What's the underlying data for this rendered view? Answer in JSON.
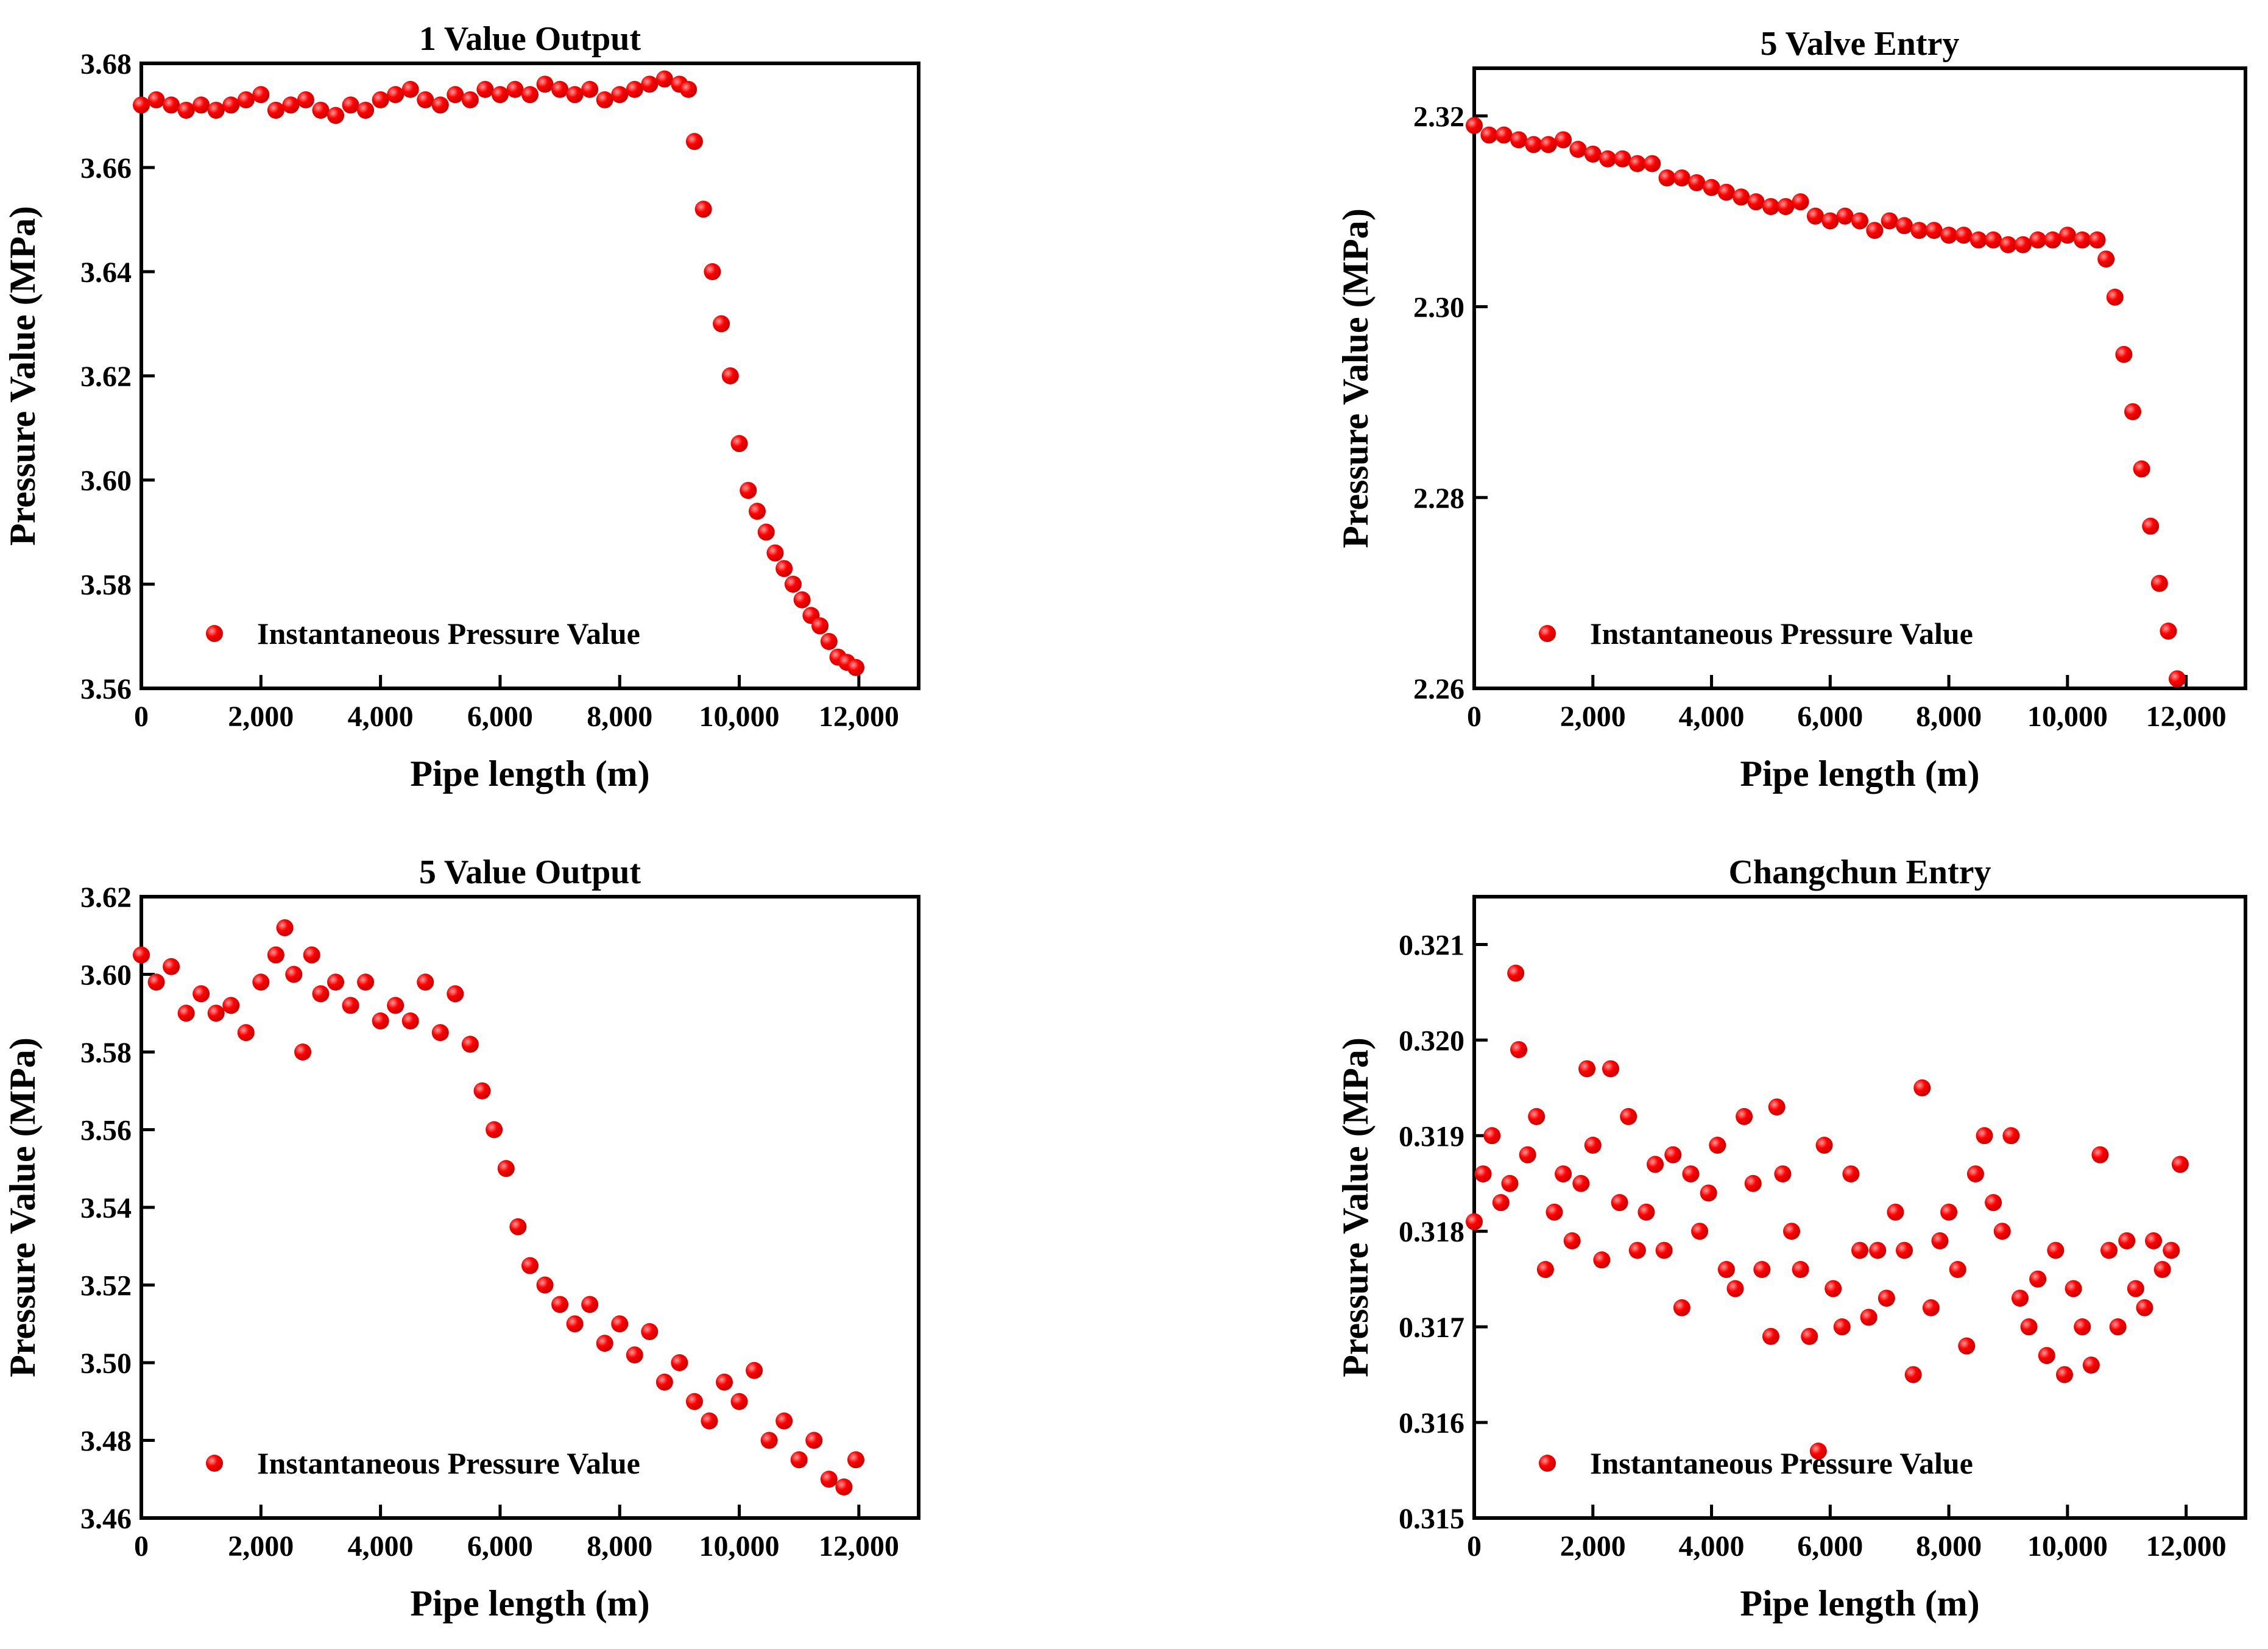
{
  "figure": {
    "background": "#ffffff",
    "marker_color": "#ff0000"
  },
  "chart_data": [
    {
      "id": "top-left",
      "type": "scatter",
      "title": "1 Value Output",
      "xlabel": "Pipe length (m)",
      "ylabel": "Pressure Value (MPa)",
      "xlim": [
        0,
        13000
      ],
      "ylim": [
        3.56,
        3.68
      ],
      "xticks": [
        0,
        2000,
        4000,
        6000,
        8000,
        10000,
        12000
      ],
      "xtick_labels": [
        "0",
        "2,000",
        "4,000",
        "6,000",
        "8,000",
        "10,000",
        "12,000"
      ],
      "yticks": [
        3.56,
        3.58,
        3.6,
        3.62,
        3.64,
        3.66,
        3.68
      ],
      "ytick_labels": [
        "3.56",
        "3.58",
        "3.60",
        "3.62",
        "3.64",
        "3.66",
        "3.68"
      ],
      "legend": {
        "label": "Instantaneous Pressure Value",
        "position": "lower-left"
      },
      "series": [
        {
          "name": "Instantaneous Pressure Value",
          "color": "#ff0000",
          "x": [
            0,
            250,
            500,
            750,
            1000,
            1250,
            1500,
            1750,
            2000,
            2250,
            2500,
            2750,
            3000,
            3250,
            3500,
            3750,
            4000,
            4250,
            4500,
            4750,
            5000,
            5250,
            5500,
            5750,
            6000,
            6250,
            6500,
            6750,
            7000,
            7250,
            7500,
            7750,
            8000,
            8250,
            8500,
            8750,
            9000,
            9150,
            9250,
            9400,
            9550,
            9700,
            9850,
            10000,
            10150,
            10300,
            10450,
            10600,
            10750,
            10900,
            11050,
            11200,
            11350,
            11500,
            11650,
            11800,
            11950
          ],
          "y": [
            3.672,
            3.673,
            3.672,
            3.671,
            3.672,
            3.671,
            3.672,
            3.673,
            3.674,
            3.671,
            3.672,
            3.673,
            3.671,
            3.67,
            3.672,
            3.671,
            3.673,
            3.674,
            3.675,
            3.673,
            3.672,
            3.674,
            3.673,
            3.675,
            3.674,
            3.675,
            3.674,
            3.676,
            3.675,
            3.674,
            3.675,
            3.673,
            3.674,
            3.675,
            3.676,
            3.677,
            3.676,
            3.675,
            3.665,
            3.652,
            3.64,
            3.63,
            3.62,
            3.607,
            3.598,
            3.594,
            3.59,
            3.586,
            3.583,
            3.58,
            3.577,
            3.574,
            3.572,
            3.569,
            3.566,
            3.565,
            3.564
          ]
        }
      ]
    },
    {
      "id": "top-right",
      "type": "scatter",
      "title": "5 Valve Entry",
      "xlabel": "Pipe length (m)",
      "ylabel": "Pressure Value (MPa)",
      "xlim": [
        0,
        13000
      ],
      "ylim": [
        2.26,
        2.325
      ],
      "xticks": [
        0,
        2000,
        4000,
        6000,
        8000,
        10000,
        12000
      ],
      "xtick_labels": [
        "0",
        "2,000",
        "4,000",
        "6,000",
        "8,000",
        "10,000",
        "12,000"
      ],
      "yticks": [
        2.26,
        2.28,
        2.3,
        2.32
      ],
      "ytick_labels": [
        "2.26",
        "2.28",
        "2.30",
        "2.32"
      ],
      "legend": {
        "label": "Instantaneous Pressure Value",
        "position": "lower-left"
      },
      "series": [
        {
          "name": "Instantaneous Pressure Value",
          "color": "#ff0000",
          "x": [
            0,
            250,
            500,
            750,
            1000,
            1250,
            1500,
            1750,
            2000,
            2250,
            2500,
            2750,
            3000,
            3250,
            3500,
            3750,
            4000,
            4250,
            4500,
            4750,
            5000,
            5250,
            5500,
            5750,
            6000,
            6250,
            6500,
            6750,
            7000,
            7250,
            7500,
            7750,
            8000,
            8250,
            8500,
            8750,
            9000,
            9250,
            9500,
            9750,
            10000,
            10250,
            10500,
            10650,
            10800,
            10950,
            11100,
            11250,
            11400,
            11550,
            11700,
            11850
          ],
          "y": [
            2.319,
            2.318,
            2.318,
            2.3175,
            2.317,
            2.317,
            2.3175,
            2.3165,
            2.316,
            2.3155,
            2.3155,
            2.315,
            2.315,
            2.3135,
            2.3135,
            2.313,
            2.3125,
            2.312,
            2.3115,
            2.311,
            2.3105,
            2.3105,
            2.311,
            2.3095,
            2.309,
            2.3095,
            2.309,
            2.308,
            2.309,
            2.3085,
            2.308,
            2.308,
            2.3075,
            2.3075,
            2.307,
            2.307,
            2.3065,
            2.3065,
            2.307,
            2.307,
            2.3075,
            2.307,
            2.307,
            2.305,
            2.301,
            2.295,
            2.289,
            2.283,
            2.277,
            2.271,
            2.266,
            2.261
          ]
        }
      ]
    },
    {
      "id": "bottom-left",
      "type": "scatter",
      "title": "5 Value Output",
      "xlabel": "Pipe length (m)",
      "ylabel": "Pressure Value (MPa)",
      "xlim": [
        0,
        13000
      ],
      "ylim": [
        3.46,
        3.62
      ],
      "xticks": [
        0,
        2000,
        4000,
        6000,
        8000,
        10000,
        12000
      ],
      "xtick_labels": [
        "0",
        "2,000",
        "4,000",
        "6,000",
        "8,000",
        "10,000",
        "12,000"
      ],
      "yticks": [
        3.46,
        3.48,
        3.5,
        3.52,
        3.54,
        3.56,
        3.58,
        3.6,
        3.62
      ],
      "ytick_labels": [
        "3.46",
        "3.48",
        "3.50",
        "3.52",
        "3.54",
        "3.56",
        "3.58",
        "3.60",
        "3.62"
      ],
      "legend": {
        "label": "Instantaneous Pressure Value",
        "position": "lower-left"
      },
      "series": [
        {
          "name": "Instantaneous Pressure Value",
          "color": "#ff0000",
          "x": [
            0,
            250,
            500,
            750,
            1000,
            1250,
            1500,
            1750,
            2000,
            2250,
            2400,
            2550,
            2700,
            2850,
            3000,
            3250,
            3500,
            3750,
            4000,
            4250,
            4500,
            4750,
            5000,
            5250,
            5500,
            5700,
            5900,
            6100,
            6300,
            6500,
            6750,
            7000,
            7250,
            7500,
            7750,
            8000,
            8250,
            8500,
            8750,
            9000,
            9250,
            9500,
            9750,
            10000,
            10250,
            10500,
            10750,
            11000,
            11250,
            11500,
            11750,
            11950
          ],
          "y": [
            3.605,
            3.598,
            3.602,
            3.59,
            3.595,
            3.59,
            3.592,
            3.585,
            3.598,
            3.605,
            3.612,
            3.6,
            3.58,
            3.605,
            3.595,
            3.598,
            3.592,
            3.598,
            3.588,
            3.592,
            3.588,
            3.598,
            3.585,
            3.595,
            3.582,
            3.57,
            3.56,
            3.55,
            3.535,
            3.525,
            3.52,
            3.515,
            3.51,
            3.515,
            3.505,
            3.51,
            3.502,
            3.508,
            3.495,
            3.5,
            3.49,
            3.485,
            3.495,
            3.49,
            3.498,
            3.48,
            3.485,
            3.475,
            3.48,
            3.47,
            3.468,
            3.475
          ]
        }
      ]
    },
    {
      "id": "bottom-right",
      "type": "scatter",
      "title": "Changchun Entry",
      "xlabel": "Pipe length (m)",
      "ylabel": "Pressure Value (MPa)",
      "xlim": [
        0,
        13000
      ],
      "ylim": [
        0.315,
        0.3215
      ],
      "xticks": [
        0,
        2000,
        4000,
        6000,
        8000,
        10000,
        12000
      ],
      "xtick_labels": [
        "0",
        "2,000",
        "4,000",
        "6,000",
        "8,000",
        "10,000",
        "12,000"
      ],
      "yticks": [
        0.315,
        0.316,
        0.317,
        0.318,
        0.319,
        0.32,
        0.321
      ],
      "ytick_labels": [
        "0.315",
        "0.316",
        "0.317",
        "0.318",
        "0.319",
        "0.320",
        "0.321"
      ],
      "legend": {
        "label": "Instantaneous Pressure Value",
        "position": "lower-left"
      },
      "series": [
        {
          "name": "Instantaneous Pressure Value",
          "color": "#ff0000",
          "x": [
            0,
            150,
            300,
            450,
            600,
            700,
            750,
            900,
            1050,
            1200,
            1350,
            1500,
            1650,
            1800,
            1900,
            2000,
            2150,
            2300,
            2450,
            2600,
            2750,
            2900,
            3050,
            3200,
            3350,
            3500,
            3650,
            3800,
            3950,
            4100,
            4250,
            4400,
            4550,
            4700,
            4850,
            5000,
            5100,
            5200,
            5350,
            5500,
            5650,
            5800,
            5900,
            6050,
            6200,
            6350,
            6500,
            6650,
            6800,
            6950,
            7100,
            7250,
            7400,
            7550,
            7700,
            7850,
            8000,
            8150,
            8300,
            8450,
            8600,
            8750,
            8900,
            9050,
            9200,
            9350,
            9500,
            9650,
            9800,
            9950,
            10100,
            10250,
            10400,
            10550,
            10700,
            10850,
            11000,
            11150,
            11300,
            11450,
            11600,
            11750,
            11900
          ],
          "y": [
            0.3181,
            0.3186,
            0.319,
            0.3183,
            0.3185,
            0.3207,
            0.3199,
            0.3188,
            0.3192,
            0.3176,
            0.3182,
            0.3186,
            0.3179,
            0.3185,
            0.3197,
            0.3189,
            0.3177,
            0.3197,
            0.3183,
            0.3192,
            0.3178,
            0.3182,
            0.3187,
            0.3178,
            0.3188,
            0.3172,
            0.3186,
            0.318,
            0.3184,
            0.3189,
            0.3176,
            0.3174,
            0.3192,
            0.3185,
            0.3176,
            0.3169,
            0.3193,
            0.3186,
            0.318,
            0.3176,
            0.3169,
            0.3157,
            0.3189,
            0.3174,
            0.317,
            0.3186,
            0.3178,
            0.3171,
            0.3178,
            0.3173,
            0.3182,
            0.3178,
            0.3165,
            0.3195,
            0.3172,
            0.3179,
            0.3182,
            0.3176,
            0.3168,
            0.3186,
            0.319,
            0.3183,
            0.318,
            0.319,
            0.3173,
            0.317,
            0.3175,
            0.3167,
            0.3178,
            0.3165,
            0.3174,
            0.317,
            0.3166,
            0.3188,
            0.3178,
            0.317,
            0.3179,
            0.3174,
            0.3172,
            0.3179,
            0.3176,
            0.3178,
            0.3187
          ]
        }
      ]
    }
  ]
}
